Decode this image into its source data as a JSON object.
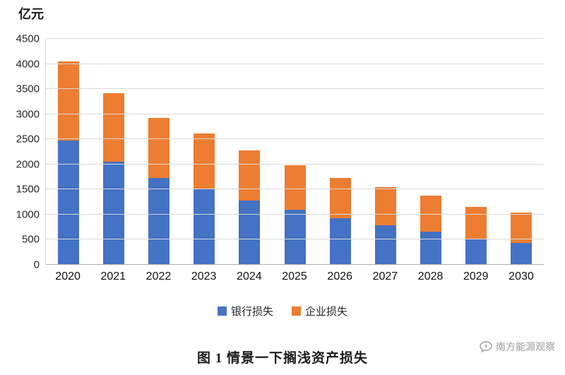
{
  "chart_data": {
    "type": "bar",
    "stacked": true,
    "title": "图 1 情景一下搁浅资产损失",
    "unit_label": "亿元",
    "categories": [
      "2020",
      "2021",
      "2022",
      "2023",
      "2024",
      "2025",
      "2026",
      "2027",
      "2028",
      "2029",
      "2030"
    ],
    "series": [
      {
        "name": "银行损失",
        "color": "#4472c4",
        "values": [
          2470,
          2050,
          1730,
          1500,
          1280,
          1100,
          930,
          790,
          660,
          520,
          430
        ]
      },
      {
        "name": "企业损失",
        "color": "#ed7d31",
        "values": [
          1580,
          1370,
          1200,
          1120,
          1000,
          890,
          800,
          760,
          720,
          630,
          610
        ]
      }
    ],
    "totals": [
      4050,
      3420,
      2930,
      2620,
      2280,
      1990,
      1730,
      1550,
      1380,
      1150,
      1040
    ],
    "ylim": [
      0,
      4500
    ],
    "ytick_step": 500,
    "grid": true,
    "legend_position": "bottom"
  },
  "watermark": {
    "text": "南方能源观察"
  }
}
